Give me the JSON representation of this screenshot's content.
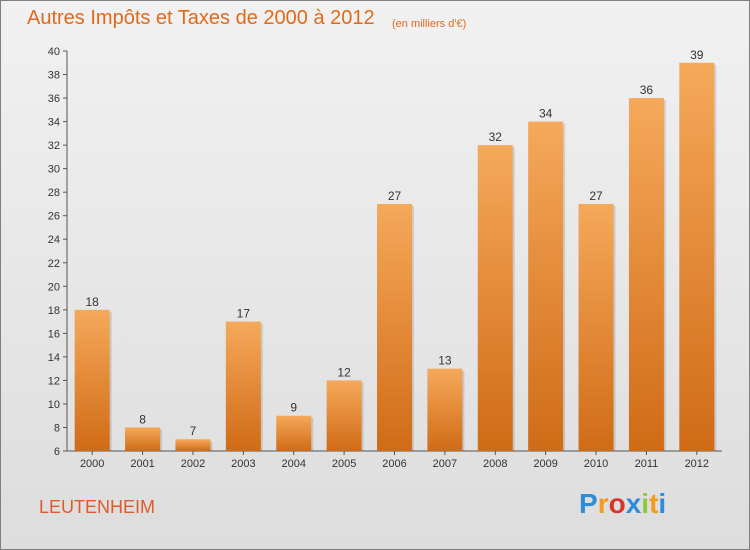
{
  "header": {
    "title": "Autres Impôts et Taxes de 2000 à 2012",
    "subtitle": "(en milliers d'€)"
  },
  "footer": {
    "location": "LEUTENHEIM",
    "logo": {
      "letters": [
        "P",
        "r",
        "o",
        "x",
        "i",
        "t",
        "i"
      ],
      "colors": [
        "#2e8dd8",
        "#f29b1d",
        "#d8342a",
        "#2e8dd8",
        "#8dc63f",
        "#f29b1d",
        "#2e8dd8"
      ]
    }
  },
  "colors": {
    "bar_light": "#f5a95a",
    "bar_dark": "#d06b16",
    "title": "#e06a1a"
  },
  "chart_data": {
    "type": "bar",
    "title": "Autres Impôts et Taxes de 2000 à 2012",
    "subtitle": "(en milliers d'€)",
    "categories": [
      "2000",
      "2001",
      "2002",
      "2003",
      "2004",
      "2005",
      "2006",
      "2007",
      "2008",
      "2009",
      "2010",
      "2011",
      "2012"
    ],
    "values": [
      18,
      8,
      7,
      17,
      9,
      12,
      27,
      13,
      32,
      34,
      27,
      36,
      39
    ],
    "ylim": [
      6,
      40
    ],
    "yticks": [
      6,
      8,
      10,
      12,
      14,
      16,
      18,
      20,
      22,
      24,
      26,
      28,
      30,
      32,
      34,
      36,
      38,
      40
    ],
    "grid": false,
    "legend": "none"
  }
}
